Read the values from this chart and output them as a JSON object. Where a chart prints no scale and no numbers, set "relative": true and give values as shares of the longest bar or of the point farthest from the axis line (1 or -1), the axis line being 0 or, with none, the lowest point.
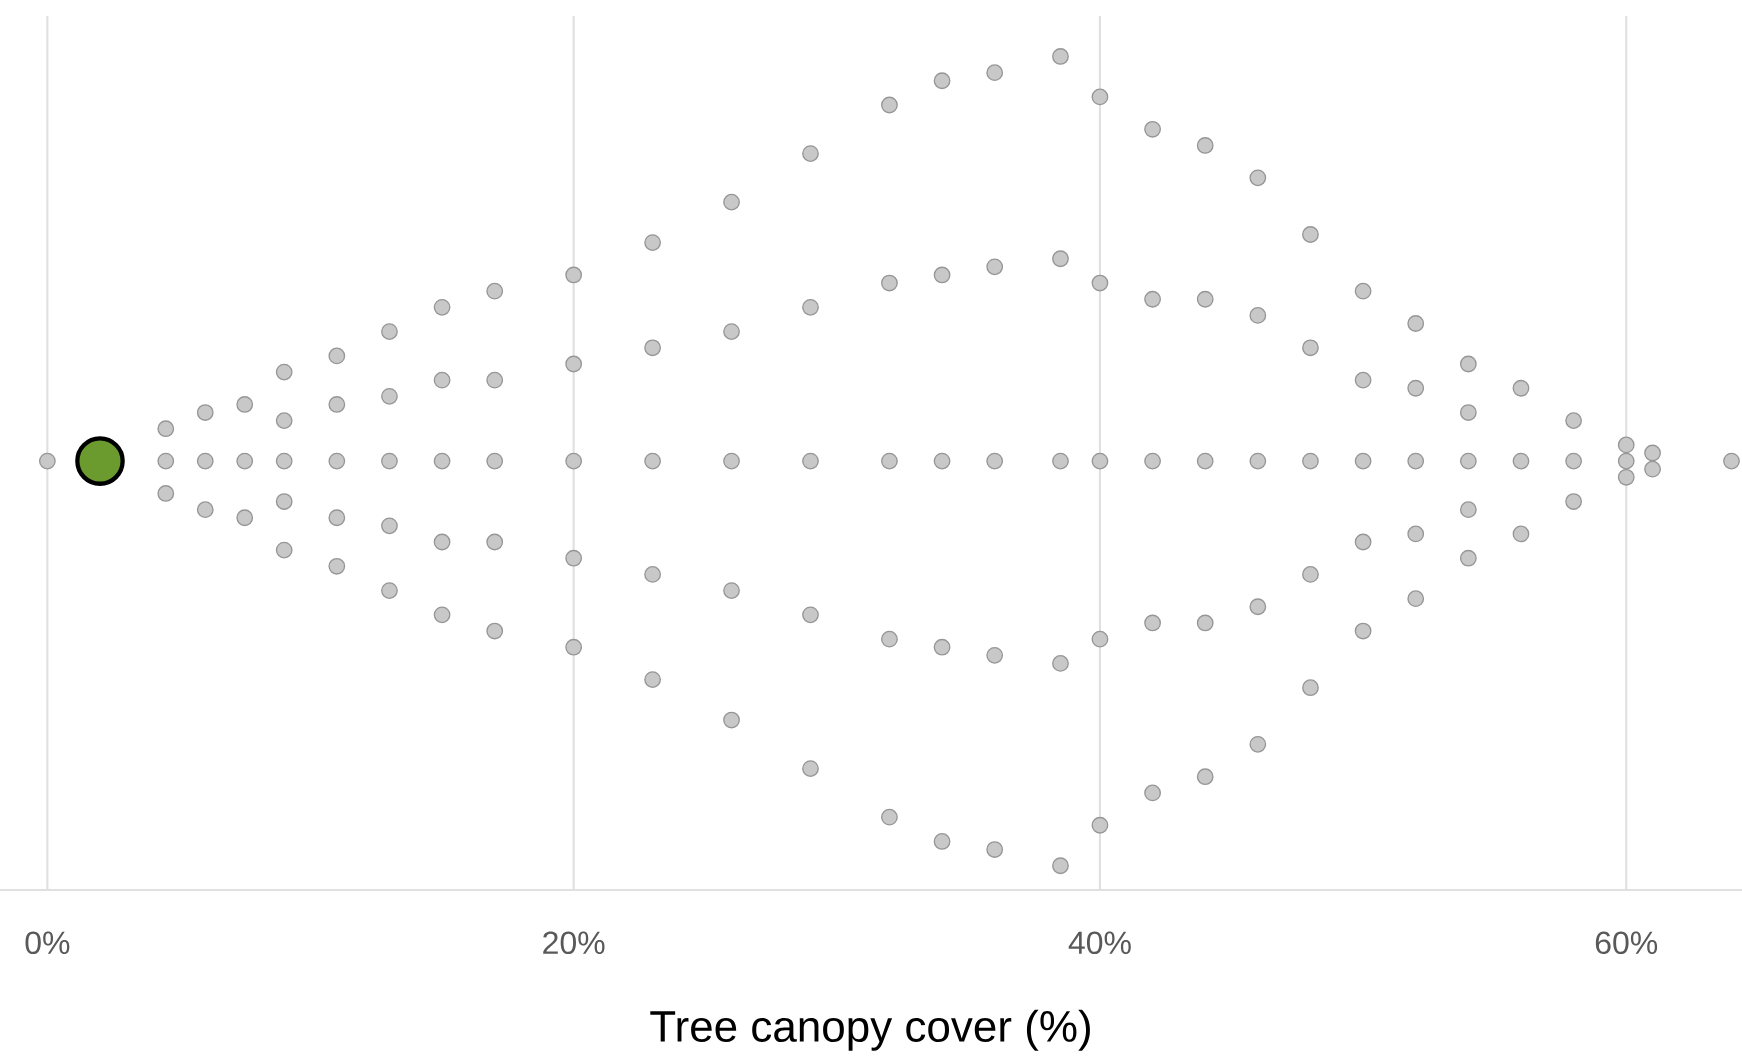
{
  "chart_data": {
    "type": "scatter",
    "relative": true,
    "xlabel": "Tree canopy cover (%)",
    "xticks": [
      {
        "value": 0,
        "label": "0%"
      },
      {
        "value": 20,
        "label": "20%"
      },
      {
        "value": 40,
        "label": "40%"
      },
      {
        "value": 60,
        "label": "60%"
      }
    ],
    "xlim": [
      -1.8,
      64.4
    ],
    "grid": "x",
    "marker": "circle",
    "series": [
      {
        "color": "#c8c8c8",
        "x": [
          0,
          4.5,
          4.5,
          4.5,
          6,
          6,
          6,
          7.5,
          7.5,
          7.5,
          9,
          9,
          9,
          9,
          9,
          11,
          11,
          11,
          11,
          11,
          13,
          13,
          13,
          13,
          13,
          15,
          15,
          15,
          15,
          15,
          17,
          17,
          17,
          17,
          17,
          20,
          20,
          20,
          20,
          20,
          23,
          23,
          23,
          23,
          23,
          26,
          26,
          26,
          26,
          26,
          29,
          29,
          29,
          29,
          29,
          32,
          32,
          32,
          32,
          32,
          34,
          34,
          34,
          34,
          34,
          36,
          36,
          36,
          36,
          36,
          38.5,
          38.5,
          38.5,
          38.5,
          38.5,
          40,
          40,
          40,
          40,
          40,
          42,
          42,
          42,
          42,
          42,
          44,
          44,
          44,
          44,
          44,
          46,
          46,
          46,
          46,
          46,
          48,
          48,
          48,
          48,
          48,
          50,
          50,
          50,
          50,
          50,
          52,
          52,
          52,
          52,
          52,
          54,
          54,
          54,
          54,
          54,
          56,
          56,
          56,
          58,
          58,
          58,
          60,
          60,
          60,
          61,
          61,
          64
        ],
        "values": [
          0.5,
          0.46,
          0.5,
          0.54,
          0.44,
          0.5,
          0.56,
          0.43,
          0.5,
          0.57,
          0.39,
          0.45,
          0.5,
          0.55,
          0.61,
          0.37,
          0.43,
          0.5,
          0.57,
          0.63,
          0.34,
          0.42,
          0.5,
          0.58,
          0.66,
          0.31,
          0.4,
          0.5,
          0.6,
          0.69,
          0.29,
          0.4,
          0.5,
          0.6,
          0.71,
          0.27,
          0.38,
          0.5,
          0.62,
          0.73,
          0.23,
          0.36,
          0.5,
          0.64,
          0.77,
          0.18,
          0.34,
          0.5,
          0.66,
          0.82,
          0.12,
          0.31,
          0.5,
          0.69,
          0.88,
          0.06,
          0.28,
          0.5,
          0.72,
          0.94,
          0.03,
          0.27,
          0.5,
          0.73,
          0.97,
          0.02,
          0.26,
          0.5,
          0.74,
          0.98,
          0,
          0.25,
          0.5,
          0.75,
          1,
          0.05,
          0.28,
          0.5,
          0.72,
          0.95,
          0.09,
          0.3,
          0.5,
          0.7,
          0.91,
          0.11,
          0.3,
          0.5,
          0.7,
          0.89,
          0.15,
          0.32,
          0.5,
          0.68,
          0.85,
          0.22,
          0.36,
          0.5,
          0.64,
          0.78,
          0.29,
          0.4,
          0.5,
          0.6,
          0.71,
          0.33,
          0.41,
          0.5,
          0.59,
          0.67,
          0.38,
          0.44,
          0.5,
          0.56,
          0.62,
          0.41,
          0.5,
          0.59,
          0.45,
          0.5,
          0.55,
          0.48,
          0.5,
          0.52,
          0.49,
          0.51,
          0.5
        ]
      },
      {
        "color": "#6b9b2f",
        "x": [
          2
        ],
        "values": [
          0.5
        ]
      }
    ]
  }
}
